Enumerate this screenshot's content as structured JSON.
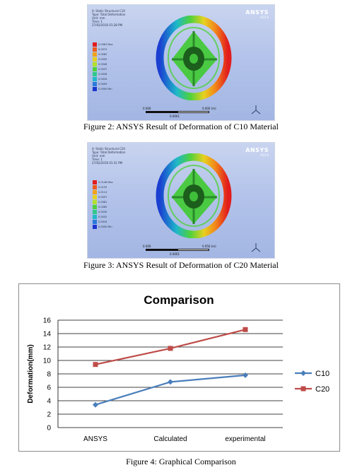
{
  "figure2": {
    "caption": "Figure 2: ANSYS Result of Deformation of C10 Material",
    "header": "A: Static Structural C10\nType: Total Deformation\nUnit: mm\nTime: 1\n27/02/2016 01:28 PM",
    "logo": "ANSYS",
    "logo_version": "R15.0",
    "legend": [
      {
        "label": "0.0083 Max",
        "color": "#e11d1d"
      },
      {
        "label": "0.0074",
        "color": "#ee5b1c"
      },
      {
        "label": "0.0065",
        "color": "#f2a11b"
      },
      {
        "label": "0.0055",
        "color": "#e7d11f"
      },
      {
        "label": "0.0046",
        "color": "#b3df2a"
      },
      {
        "label": "0.0037",
        "color": "#4fd13c"
      },
      {
        "label": "0.0028",
        "color": "#2fc98a"
      },
      {
        "label": "0.0018",
        "color": "#21b9c9"
      },
      {
        "label": "0.0009",
        "color": "#2b79da"
      },
      {
        "label": "0.0000 Min",
        "color": "#1b35cf"
      }
    ],
    "scale": {
      "left": "0.000",
      "mid": "0.0001",
      "right": "0.000 (m)"
    }
  },
  "figure3": {
    "caption": "Figure 3: ANSYS Result of Deformation of C20 Material",
    "header": "A: Static Structural C20\nType: Total Deformation\nUnit: mm\nTime: 1\n27/02/2016 01:31 PM",
    "logo": "ANSYS",
    "logo_version": "R15.0",
    "legend": [
      {
        "label": "0.0146 Max",
        "color": "#e11d1d"
      },
      {
        "label": "0.0130",
        "color": "#ee5b1c"
      },
      {
        "label": "0.0114",
        "color": "#f2a11b"
      },
      {
        "label": "0.0097",
        "color": "#e7d11f"
      },
      {
        "label": "0.0081",
        "color": "#b3df2a"
      },
      {
        "label": "0.0065",
        "color": "#4fd13c"
      },
      {
        "label": "0.0049",
        "color": "#2fc98a"
      },
      {
        "label": "0.0032",
        "color": "#21b9c9"
      },
      {
        "label": "0.0016",
        "color": "#2b79da"
      },
      {
        "label": "0.0000 Min",
        "color": "#1b35cf"
      }
    ],
    "scale": {
      "left": "0.000",
      "mid": "0.0001",
      "right": "0.050 (m)"
    }
  },
  "figure4": {
    "caption": "Figure 4: Graphical Comparison"
  },
  "chart_data": {
    "type": "line",
    "title": "Comparison",
    "xlabel": "",
    "ylabel": "Deformation(mm)",
    "categories": [
      "ANSYS",
      "Calculated",
      "experimental"
    ],
    "series": [
      {
        "name": "C10",
        "values": [
          3.4,
          6.8,
          7.8
        ],
        "color": "#4a7ebb",
        "marker": "diamond"
      },
      {
        "name": "C20",
        "values": [
          9.4,
          11.8,
          14.6
        ],
        "color": "#be4b48",
        "marker": "square"
      }
    ],
    "ylim": [
      0,
      16
    ],
    "yticks": [
      0,
      2,
      4,
      6,
      8,
      10,
      12,
      14,
      16
    ],
    "grid": true,
    "legend_position": "right"
  }
}
